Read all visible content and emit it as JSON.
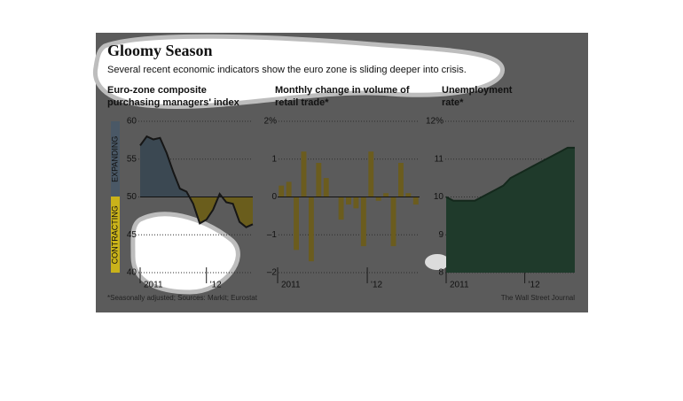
{
  "header": {
    "title": "Gloomy Season",
    "subtitle": "Several recent economic indicators show the euro zone is sliding deeper into crisis."
  },
  "footer": {
    "note": "*Seasonally adjusted; Sources: Markit; Eurostat",
    "source": "The Wall Street Journal"
  },
  "chart_data": [
    {
      "type": "area",
      "title_lines": [
        "Euro-zone composite",
        "purchasing managers' index"
      ],
      "annotations": [
        "EXPANDING",
        "CONTRACTING"
      ],
      "categories": [
        "2011",
        null,
        null,
        null,
        null,
        null,
        null,
        null,
        null,
        null,
        "'12",
        null,
        null,
        null,
        null,
        null,
        null,
        null
      ],
      "values": [
        56.8,
        58.0,
        57.6,
        57.8,
        55.8,
        53.3,
        51.1,
        50.7,
        49.1,
        46.5,
        47.0,
        48.3,
        50.4,
        49.3,
        49.1,
        46.7,
        46.0,
        46.4
      ],
      "baseline": 50,
      "ylim": [
        40,
        60
      ],
      "yticks": [
        40,
        45,
        50,
        55,
        60
      ],
      "color": "#161616",
      "fill_above": "#3b4852",
      "fill_below": "#6a5d1c",
      "grid": true
    },
    {
      "type": "bar",
      "title_lines": [
        "Monthly change in volume of",
        "retail trade*"
      ],
      "categories": [
        "2011",
        null,
        null,
        null,
        null,
        null,
        null,
        null,
        null,
        null,
        null,
        null,
        "'12",
        null,
        null,
        null,
        null,
        null,
        null
      ],
      "values": [
        0.3,
        0.4,
        -1.4,
        1.2,
        -1.7,
        0.9,
        0.5,
        0.0,
        -0.6,
        -0.2,
        -0.3,
        -1.3,
        1.2,
        -0.1,
        0.1,
        -1.3,
        0.9,
        0.1,
        -0.2
      ],
      "baseline": 0,
      "ylim": [
        -2,
        2
      ],
      "yticks": [
        {
          "value": -2,
          "label": "–2"
        },
        {
          "value": -1,
          "label": "–1"
        },
        0,
        1,
        {
          "value": 2,
          "label": "2%"
        }
      ],
      "color": "#6b5c1e",
      "grid": true
    },
    {
      "type": "area",
      "title_lines": [
        "Unemployment",
        "rate*"
      ],
      "categories": [
        "2011",
        null,
        null,
        null,
        null,
        null,
        null,
        null,
        null,
        null,
        null,
        "'12",
        null,
        null,
        null,
        null,
        null,
        null,
        null
      ],
      "values": [
        10.0,
        9.9,
        9.9,
        9.9,
        9.9,
        10.0,
        10.1,
        10.2,
        10.3,
        10.5,
        10.6,
        10.7,
        10.8,
        10.9,
        11.0,
        11.1,
        11.2,
        11.3,
        11.3
      ],
      "baseline": 8,
      "ylim": [
        8,
        12
      ],
      "yticks": [
        8,
        9,
        10,
        11,
        {
          "value": 12,
          "label": "12%"
        }
      ],
      "color": "#14281c",
      "fill_above": "#1f3a2b",
      "grid": true
    }
  ]
}
